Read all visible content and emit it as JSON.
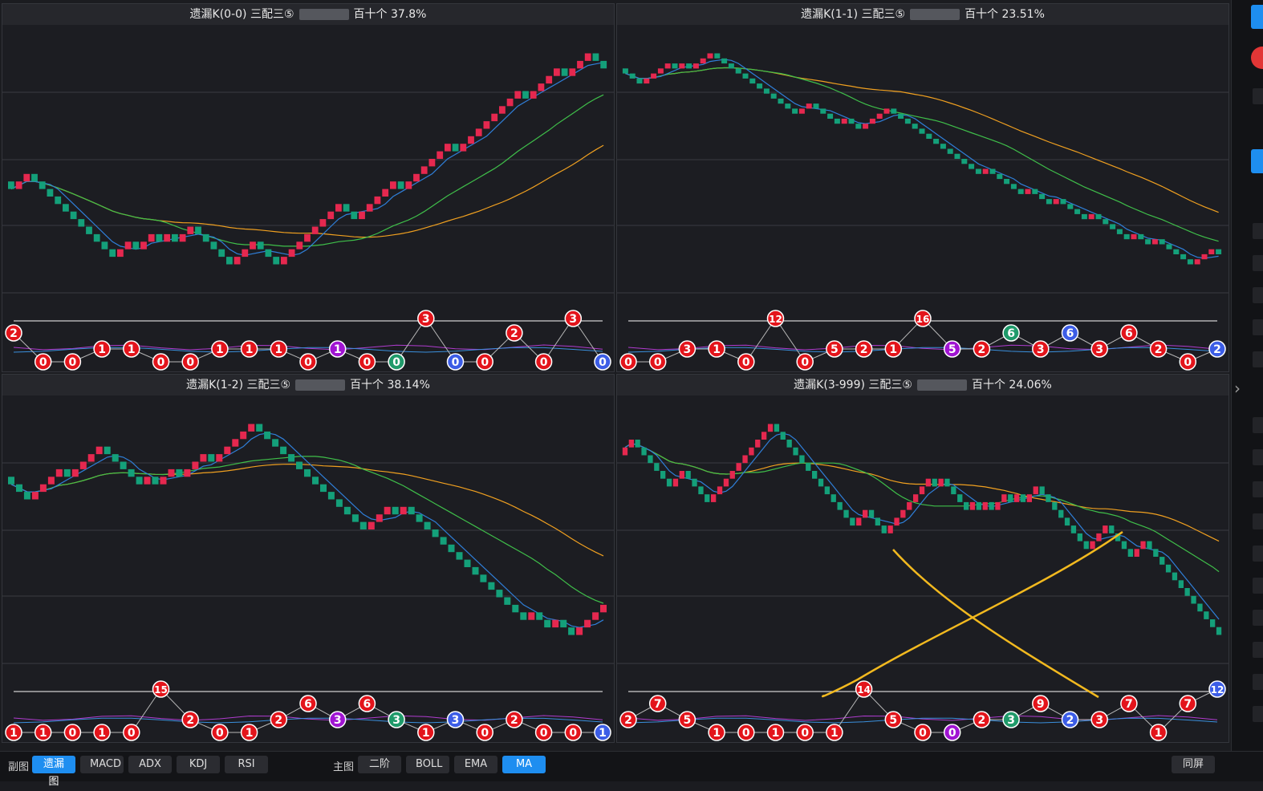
{
  "panels": [
    {
      "title_left": "遗漏K(0-0)  三配三⑤",
      "title_right": "百十个  37.8%"
    },
    {
      "title_left": "遗漏K(1-1)  三配三⑤",
      "title_right": "百十个  23.51%"
    },
    {
      "title_left": "遗漏K(1-2)  三配三⑤",
      "title_right": "百十个  38.14%"
    },
    {
      "title_left": "遗漏K(3-999)  三配三⑤",
      "title_right": "百十个  24.06%"
    }
  ],
  "chart_data": [
    {
      "type": "candlestick",
      "title": "遗漏K(0-0)  三配三⑤ 百十个 37.8%",
      "candles": {
        "start": 0.55,
        "steps": [
          -1,
          1,
          1,
          -1,
          -1,
          -1,
          -1,
          -1,
          -1,
          -1,
          -1,
          -1,
          -1,
          -1,
          1,
          1,
          -1,
          1,
          1,
          -1,
          1,
          -1,
          1,
          1,
          -1,
          -1,
          -1,
          -1,
          -1,
          1,
          1,
          1,
          -1,
          -1,
          -1,
          1,
          1,
          1,
          1,
          1,
          1,
          1,
          1,
          -1,
          -1,
          1,
          1,
          1,
          1,
          1,
          -1,
          1,
          1,
          1,
          1,
          1,
          1,
          -1,
          1,
          1,
          1,
          1,
          1,
          1,
          1,
          1,
          -1,
          1,
          1,
          1,
          1,
          -1,
          1,
          1,
          1,
          -1,
          -1
        ]
      },
      "markers": [
        {
          "label": "2",
          "level": "high",
          "color": "red"
        },
        {
          "label": "0",
          "level": "low",
          "color": "red"
        },
        {
          "label": "0",
          "level": "low",
          "color": "red"
        },
        {
          "label": "1",
          "level": "mid",
          "color": "red"
        },
        {
          "label": "1",
          "level": "mid",
          "color": "red"
        },
        {
          "label": "0",
          "level": "low",
          "color": "red"
        },
        {
          "label": "0",
          "level": "low",
          "color": "red"
        },
        {
          "label": "1",
          "level": "mid",
          "color": "red"
        },
        {
          "label": "1",
          "level": "mid",
          "color": "red"
        },
        {
          "label": "1",
          "level": "mid",
          "color": "red"
        },
        {
          "label": "0",
          "level": "low",
          "color": "red"
        },
        {
          "label": "1",
          "level": "mid",
          "color": "purple"
        },
        {
          "label": "0",
          "level": "low",
          "color": "red"
        },
        {
          "label": "0",
          "level": "low",
          "color": "green"
        },
        {
          "label": "3",
          "level": "top",
          "color": "red"
        },
        {
          "label": "0",
          "level": "low",
          "color": "blue"
        },
        {
          "label": "0",
          "level": "low",
          "color": "red"
        },
        {
          "label": "2",
          "level": "high",
          "color": "red"
        },
        {
          "label": "0",
          "level": "low",
          "color": "red"
        },
        {
          "label": "3",
          "level": "top",
          "color": "red"
        },
        {
          "label": "0",
          "level": "low",
          "color": "blue"
        }
      ]
    },
    {
      "type": "candlestick",
      "title": "遗漏K(1-1)  三配三⑤ 百十个 23.51%",
      "candles": {
        "start": 0.56,
        "steps": [
          -1,
          -1,
          -1,
          1,
          1,
          1,
          1,
          -1,
          1,
          -1,
          1,
          1,
          1,
          -1,
          -1,
          -1,
          -1,
          -1,
          -1,
          -1,
          -1,
          -1,
          -1,
          -1,
          -1,
          1,
          1,
          -1,
          -1,
          -1,
          -1,
          1,
          -1,
          -1,
          1,
          1,
          1,
          1,
          -1,
          -1,
          -1,
          -1,
          -1,
          -1,
          -1,
          -1,
          -1,
          -1,
          -1,
          -1,
          -1,
          1,
          -1,
          -1,
          -1,
          -1,
          -1,
          1,
          -1,
          -1,
          -1,
          1,
          -1,
          -1,
          -1,
          -1,
          1,
          -1,
          -1,
          -1,
          -1,
          -1,
          1,
          -1,
          -1,
          1,
          -1,
          -1,
          -1,
          -1,
          -1,
          1,
          1,
          1,
          -1
        ]
      },
      "markers": [
        {
          "label": "0",
          "level": "low",
          "color": "red"
        },
        {
          "label": "0",
          "level": "low",
          "color": "red"
        },
        {
          "label": "3",
          "level": "mid",
          "color": "red"
        },
        {
          "label": "1",
          "level": "mid",
          "color": "red"
        },
        {
          "label": "0",
          "level": "low",
          "color": "red"
        },
        {
          "label": "12",
          "level": "top",
          "color": "red"
        },
        {
          "label": "0",
          "level": "low",
          "color": "red"
        },
        {
          "label": "5",
          "level": "mid",
          "color": "red"
        },
        {
          "label": "2",
          "level": "mid",
          "color": "red"
        },
        {
          "label": "1",
          "level": "mid",
          "color": "red"
        },
        {
          "label": "16",
          "level": "top",
          "color": "red"
        },
        {
          "label": "5",
          "level": "mid",
          "color": "purple"
        },
        {
          "label": "2",
          "level": "mid",
          "color": "red"
        },
        {
          "label": "6",
          "level": "high",
          "color": "green"
        },
        {
          "label": "3",
          "level": "mid",
          "color": "red"
        },
        {
          "label": "6",
          "level": "high",
          "color": "blue"
        },
        {
          "label": "3",
          "level": "mid",
          "color": "red"
        },
        {
          "label": "6",
          "level": "high",
          "color": "red"
        },
        {
          "label": "2",
          "level": "mid",
          "color": "red"
        },
        {
          "label": "0",
          "level": "low",
          "color": "red"
        },
        {
          "label": "2",
          "level": "mid",
          "color": "blue"
        }
      ]
    },
    {
      "type": "candlestick",
      "title": "遗漏K(1-2)  三配三⑤ 百十个 38.14%",
      "candles": {
        "start": 0.5,
        "steps": [
          -1,
          -1,
          -1,
          1,
          1,
          1,
          1,
          -1,
          1,
          1,
          1,
          1,
          -1,
          -1,
          -1,
          -1,
          -1,
          1,
          -1,
          1,
          1,
          -1,
          1,
          1,
          1,
          -1,
          1,
          1,
          1,
          1,
          1,
          -1,
          -1,
          -1,
          -1,
          -1,
          -1,
          -1,
          -1,
          -1,
          -1,
          -1,
          -1,
          -1,
          -1,
          1,
          1,
          1,
          -1,
          1,
          -1,
          -1,
          -1,
          -1,
          -1,
          -1,
          -1,
          -1,
          -1,
          -1,
          -1,
          -1,
          -1,
          -1,
          -1,
          1,
          -1,
          -1,
          1,
          -1,
          -1,
          1,
          1,
          1,
          1
        ]
      },
      "markers": [
        {
          "label": "1",
          "level": "low",
          "color": "red"
        },
        {
          "label": "1",
          "level": "low",
          "color": "red"
        },
        {
          "label": "0",
          "level": "low",
          "color": "red"
        },
        {
          "label": "1",
          "level": "low",
          "color": "red"
        },
        {
          "label": "0",
          "level": "low",
          "color": "red"
        },
        {
          "label": "15",
          "level": "top",
          "color": "red"
        },
        {
          "label": "2",
          "level": "mid",
          "color": "red"
        },
        {
          "label": "0",
          "level": "low",
          "color": "red"
        },
        {
          "label": "1",
          "level": "low",
          "color": "red"
        },
        {
          "label": "2",
          "level": "mid",
          "color": "red"
        },
        {
          "label": "6",
          "level": "high",
          "color": "red"
        },
        {
          "label": "3",
          "level": "mid",
          "color": "purple"
        },
        {
          "label": "6",
          "level": "high",
          "color": "red"
        },
        {
          "label": "3",
          "level": "mid",
          "color": "green"
        },
        {
          "label": "1",
          "level": "low",
          "color": "red"
        },
        {
          "label": "3",
          "level": "mid",
          "color": "blue"
        },
        {
          "label": "0",
          "level": "low",
          "color": "red"
        },
        {
          "label": "2",
          "level": "mid",
          "color": "red"
        },
        {
          "label": "0",
          "level": "low",
          "color": "red"
        },
        {
          "label": "0",
          "level": "low",
          "color": "red"
        },
        {
          "label": "1",
          "level": "low",
          "color": "blue"
        }
      ]
    },
    {
      "type": "candlestick",
      "title": "遗漏K(3-999)  三配三⑤ 百十个 24.06%",
      "candles": {
        "start": 0.55,
        "steps": [
          1,
          1,
          -1,
          -1,
          -1,
          -1,
          -1,
          -1,
          1,
          1,
          -1,
          -1,
          -1,
          -1,
          1,
          1,
          1,
          1,
          1,
          1,
          1,
          1,
          1,
          1,
          -1,
          -1,
          -1,
          -1,
          -1,
          -1,
          -1,
          -1,
          -1,
          -1,
          -1,
          -1,
          -1,
          1,
          1,
          -1,
          -1,
          -1,
          1,
          1,
          1,
          1,
          1,
          1,
          1,
          -1,
          1,
          -1,
          -1,
          -1,
          -1,
          1,
          -1,
          1,
          -1,
          1,
          1,
          -1,
          1,
          -1,
          1,
          1,
          -1,
          -1,
          -1,
          -1,
          -1,
          -1,
          -1,
          -1,
          1,
          1,
          1,
          -1,
          -1,
          -1,
          -1,
          1,
          1,
          -1,
          -1,
          -1,
          -1,
          -1,
          -1,
          -1,
          -1,
          -1,
          -1,
          -1,
          -1
        ]
      },
      "markers": [
        {
          "label": "2",
          "level": "mid",
          "color": "red"
        },
        {
          "label": "7",
          "level": "high",
          "color": "red"
        },
        {
          "label": "5",
          "level": "mid",
          "color": "red"
        },
        {
          "label": "1",
          "level": "low",
          "color": "red"
        },
        {
          "label": "0",
          "level": "low",
          "color": "red"
        },
        {
          "label": "1",
          "level": "low",
          "color": "red"
        },
        {
          "label": "0",
          "level": "low",
          "color": "red"
        },
        {
          "label": "1",
          "level": "low",
          "color": "red"
        },
        {
          "label": "14",
          "level": "top",
          "color": "red"
        },
        {
          "label": "5",
          "level": "mid",
          "color": "red"
        },
        {
          "label": "0",
          "level": "low",
          "color": "red"
        },
        {
          "label": "0",
          "level": "low",
          "color": "purple"
        },
        {
          "label": "2",
          "level": "mid",
          "color": "red"
        },
        {
          "label": "3",
          "level": "mid",
          "color": "green"
        },
        {
          "label": "9",
          "level": "high",
          "color": "red"
        },
        {
          "label": "2",
          "level": "mid",
          "color": "blue"
        },
        {
          "label": "3",
          "level": "mid",
          "color": "red"
        },
        {
          "label": "7",
          "level": "high",
          "color": "red"
        },
        {
          "label": "1",
          "level": "low",
          "color": "red"
        },
        {
          "label": "7",
          "level": "high",
          "color": "red"
        },
        {
          "label": "12",
          "level": "top",
          "color": "blue"
        }
      ]
    }
  ],
  "colors": {
    "up": "#e5284f",
    "down": "#14a07a",
    "ma_short": "#2f7fd9",
    "ma_mid": "#3fbf4a",
    "ma_long": "#f0a020",
    "annotation": "#f2b91f",
    "marker_red": "#e3141b",
    "marker_purple": "#a014d2",
    "marker_green": "#1f9a6a",
    "marker_blue": "#3c5de6",
    "accent": "#1e8ef0"
  },
  "bottombar": {
    "sub_label": "副图",
    "sub_buttons": [
      "遗漏图",
      "MACD",
      "ADX",
      "KDJ",
      "RSI"
    ],
    "main_label": "主图",
    "main_buttons": [
      "二阶",
      "BOLL",
      "EMA",
      "MA"
    ],
    "right_button": "同屏"
  }
}
